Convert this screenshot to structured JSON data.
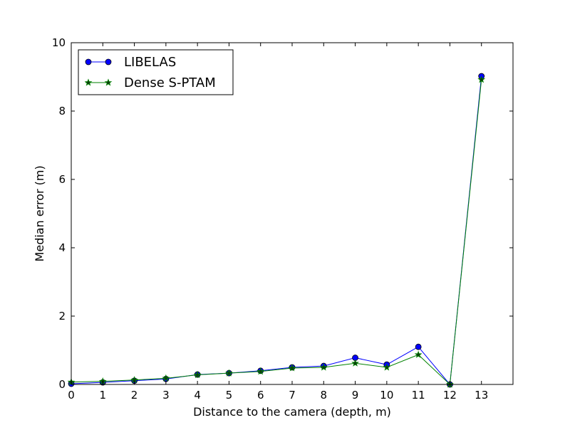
{
  "chart_data": {
    "type": "line",
    "title": "",
    "xlabel": "Distance to the camera (depth, m)",
    "ylabel": "Median error (m)",
    "xlim": [
      0,
      14
    ],
    "ylim": [
      0,
      10
    ],
    "xticks": [
      0,
      1,
      2,
      3,
      4,
      5,
      6,
      7,
      8,
      9,
      10,
      11,
      12,
      13
    ],
    "yticks": [
      0,
      2,
      4,
      6,
      8,
      10
    ],
    "grid": false,
    "legend_position": "top-left",
    "x": [
      0,
      1,
      2,
      3,
      4,
      5,
      6,
      7,
      8,
      9,
      10,
      11,
      12,
      13
    ],
    "series": [
      {
        "name": "LIBELAS",
        "color": "#0000ff",
        "marker": "circle",
        "values": [
          0.02,
          0.06,
          0.11,
          0.16,
          0.29,
          0.33,
          0.4,
          0.5,
          0.54,
          0.78,
          0.58,
          1.1,
          0.0,
          9.02
        ]
      },
      {
        "name": "Dense S-PTAM",
        "color": "#008000",
        "marker": "star",
        "values": [
          0.07,
          0.09,
          0.13,
          0.18,
          0.28,
          0.33,
          0.38,
          0.48,
          0.5,
          0.62,
          0.5,
          0.87,
          0.0,
          8.92
        ]
      }
    ]
  }
}
